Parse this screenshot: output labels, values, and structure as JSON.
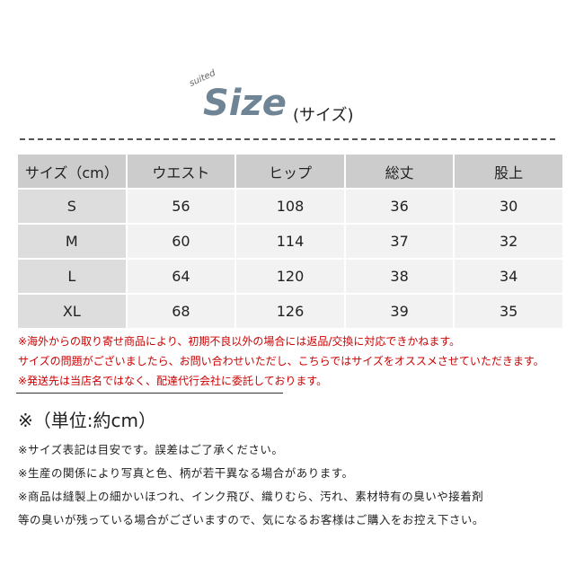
{
  "header": {
    "badge": "suited",
    "title": "Size",
    "subtitle": "(サイズ)"
  },
  "table": {
    "columns": [
      "サイズ（cm）",
      "ウエスト",
      "ヒップ",
      "総丈",
      "股上"
    ],
    "rows": [
      [
        "S",
        56,
        108,
        36,
        30
      ],
      [
        "M",
        60,
        114,
        37,
        32
      ],
      [
        "L",
        64,
        120,
        38,
        34
      ],
      [
        "XL",
        68,
        126,
        39,
        35
      ]
    ]
  },
  "warnings": [
    "※海外からの取り寄せ商品により、初期不良以外の場合には返品/交換に対応できかねます。",
    "サイズの問題がございましたら、お問い合わせいただし、こちらではサイズをオススメさせていただきます。",
    "※発送先は当店名ではなく、配達代行会社に委託しております。"
  ],
  "unit_note": "※（単位:約cm）",
  "notes": [
    "※サイズ表記は目安です。誤差はご了承ください。",
    "※生産の関係により写真と色、柄が若干異なる場合があります。",
    "※商品は縫製上の細かいほつれ、インク飛び、織りむら、汚れ、素材特有の臭いや接着剤",
    "等の臭いが残っている場合がございますので、気になるお客様はご購入をお控え下さい。"
  ]
}
